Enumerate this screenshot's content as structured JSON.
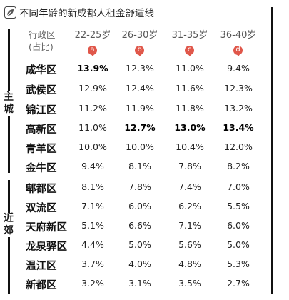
{
  "title": "不同年龄的新成都人租金舒适线",
  "header_label": [
    "行政区",
    "(占比)"
  ],
  "columns": [
    {
      "label": "22-25岁",
      "badge": "a"
    },
    {
      "label": "26-30岁",
      "badge": "b"
    },
    {
      "label": "31-35岁",
      "badge": "c"
    },
    {
      "label": "36-40岁",
      "badge": "d"
    }
  ],
  "zones": {
    "main": "主城",
    "suburb": "近郊"
  },
  "colors": {
    "badge": "#e0574a",
    "bar": "#111111"
  },
  "rows": [
    {
      "name": "成华区",
      "values": [
        "13.9%",
        "12.3%",
        "11.0%",
        "9.4%"
      ],
      "bold": [
        true,
        false,
        false,
        false
      ]
    },
    {
      "name": "武侯区",
      "values": [
        "12.9%",
        "12.4%",
        "11.6%",
        "12.3%"
      ],
      "bold": [
        false,
        false,
        false,
        false
      ]
    },
    {
      "name": "锦江区",
      "values": [
        "11.2%",
        "11.9%",
        "11.8%",
        "13.2%"
      ],
      "bold": [
        false,
        false,
        false,
        false
      ]
    },
    {
      "name": "高新区",
      "values": [
        "11.0%",
        "12.7%",
        "13.0%",
        "13.4%"
      ],
      "bold": [
        false,
        true,
        true,
        true
      ]
    },
    {
      "name": "青羊区",
      "values": [
        "10.0%",
        "10.0%",
        "10.4%",
        "12.0%"
      ],
      "bold": [
        false,
        false,
        false,
        false
      ]
    },
    {
      "name": "金牛区",
      "values": [
        "9.4%",
        "8.1%",
        "7.8%",
        "8.2%"
      ],
      "bold": [
        false,
        false,
        false,
        false
      ]
    },
    {
      "name": "郫都区",
      "values": [
        "8.1%",
        "7.8%",
        "7.4%",
        "7.0%"
      ],
      "bold": [
        false,
        false,
        false,
        false
      ]
    },
    {
      "name": "双流区",
      "values": [
        "7.1%",
        "6.0%",
        "6.2%",
        "5.5%"
      ],
      "bold": [
        false,
        false,
        false,
        false
      ]
    },
    {
      "name": "天府新区",
      "values": [
        "5.1%",
        "6.6%",
        "7.1%",
        "6.0%"
      ],
      "bold": [
        false,
        false,
        false,
        false
      ]
    },
    {
      "name": "龙泉驿区",
      "values": [
        "4.4%",
        "5.0%",
        "5.6%",
        "5.0%"
      ],
      "bold": [
        false,
        false,
        false,
        false
      ]
    },
    {
      "name": "温江区",
      "values": [
        "3.7%",
        "4.0%",
        "4.8%",
        "5.3%"
      ],
      "bold": [
        false,
        false,
        false,
        false
      ]
    },
    {
      "name": "新都区",
      "values": [
        "3.2%",
        "3.1%",
        "3.5%",
        "2.7%"
      ],
      "bold": [
        false,
        false,
        false,
        false
      ]
    }
  ]
}
